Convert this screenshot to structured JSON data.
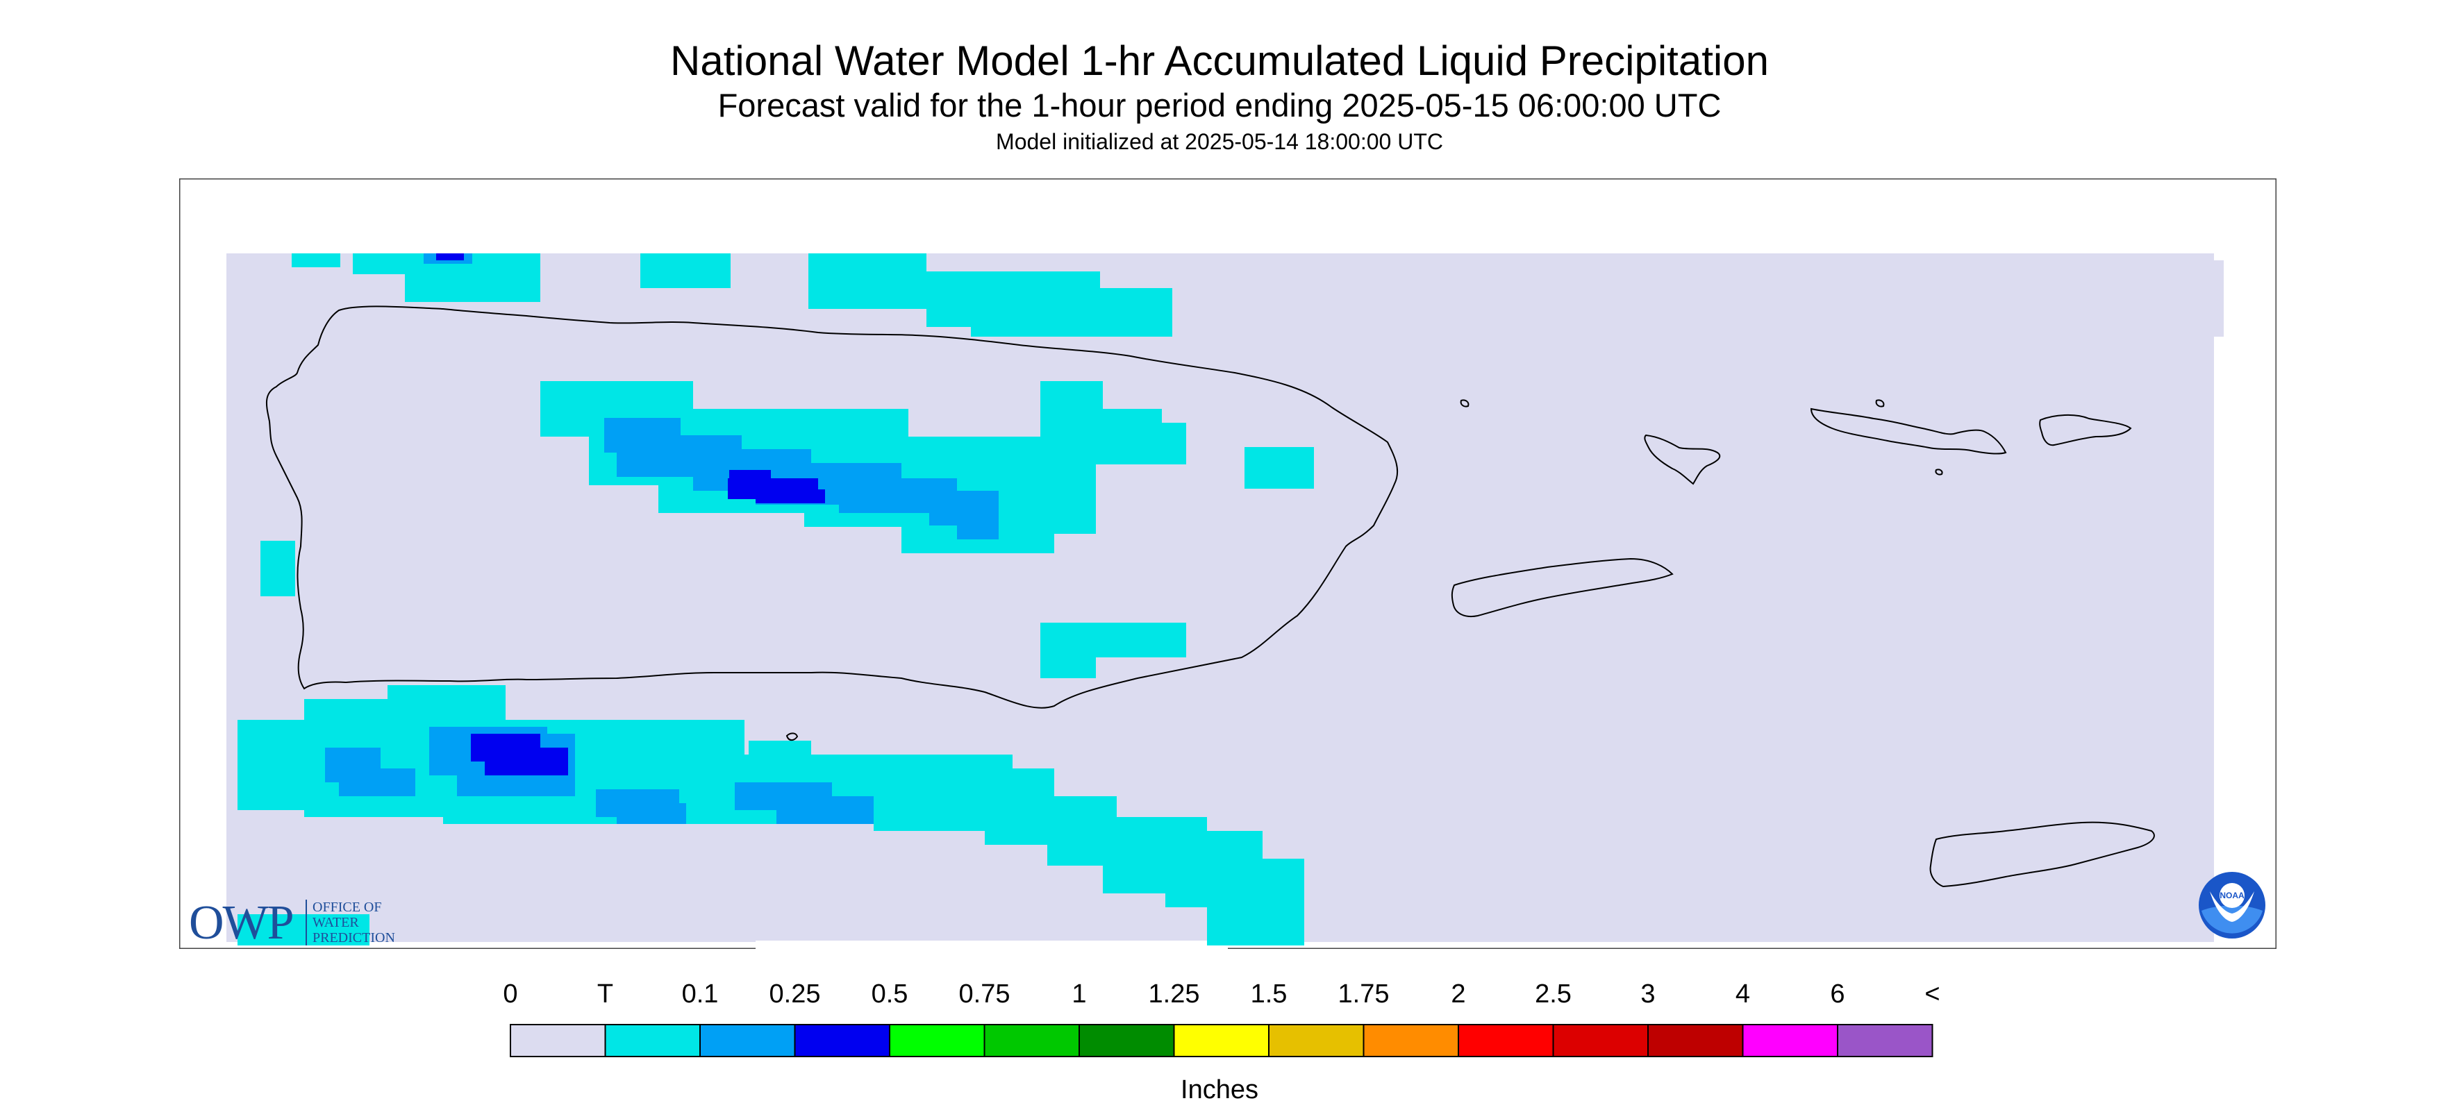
{
  "header": {
    "title": "National Water Model 1-hr Accumulated Liquid Precipitation",
    "subtitle": "Forecast valid for the 1-hour period ending 2025-05-15 06:00:00 UTC",
    "init": "Model initialized at 2025-05-14 18:00:00 UTC"
  },
  "logos": {
    "owp_letters": "OWP",
    "owp_line1": "OFFICE OF",
    "owp_line2": "WATER",
    "owp_line3": "PREDICTION",
    "noaa_text": "NOAA"
  },
  "legend": {
    "ticks": [
      "0",
      "T",
      "0.1",
      "0.25",
      "0.5",
      "0.75",
      "1",
      "1.25",
      "1.5",
      "1.75",
      "2",
      "2.5",
      "3",
      "4",
      "6",
      "<"
    ],
    "colors": [
      "#dcdcf0",
      "#00e6e6",
      "#00a0f5",
      "#0000f0",
      "#00ff00",
      "#00c800",
      "#008c00",
      "#ffff00",
      "#e6c000",
      "#ff8c00",
      "#ff0000",
      "#dc0000",
      "#be0000",
      "#ff00ff",
      "#9a55c8"
    ],
    "units": "Inches"
  },
  "map": {
    "background_color": "#dcdcf0",
    "coastline_color": "#000000"
  }
}
